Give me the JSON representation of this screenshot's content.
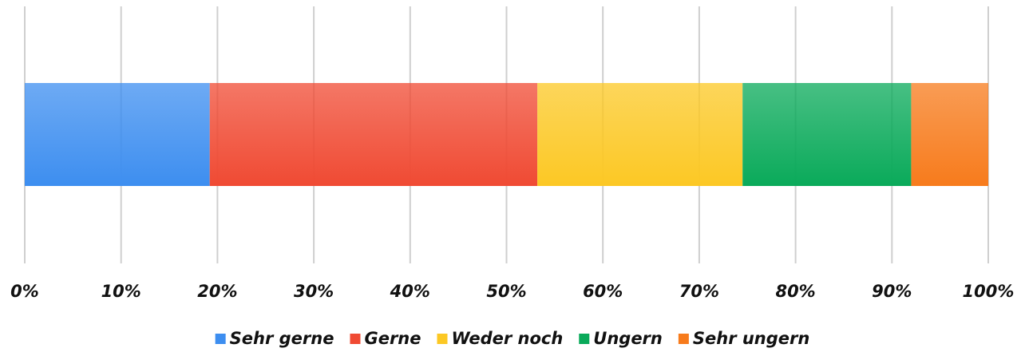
{
  "chart_data": {
    "type": "stacked_barh",
    "series": [
      {
        "name": "Sehr gerne",
        "color": "#3d8ef0",
        "values": [
          19.2
        ]
      },
      {
        "name": "Gerne",
        "color": "#f04a33",
        "values": [
          34.0
        ]
      },
      {
        "name": "Weder noch",
        "color": "#fcc824",
        "values": [
          21.3
        ]
      },
      {
        "name": "Ungern",
        "color": "#0aaa5a",
        "values": [
          17.5
        ]
      },
      {
        "name": "Sehr ungern",
        "color": "#f77b1c",
        "values": [
          8.0
        ]
      }
    ],
    "xlim": [
      0,
      100
    ],
    "xticks": [
      {
        "value": 0,
        "label": "0%"
      },
      {
        "value": 10,
        "label": "10%"
      },
      {
        "value": 20,
        "label": "20%"
      },
      {
        "value": 30,
        "label": "30%"
      },
      {
        "value": 40,
        "label": "40%"
      },
      {
        "value": 50,
        "label": "50%"
      },
      {
        "value": 60,
        "label": "60%"
      },
      {
        "value": 70,
        "label": "70%"
      },
      {
        "value": 80,
        "label": "80%"
      },
      {
        "value": 90,
        "label": "90%"
      },
      {
        "value": 100,
        "label": "100%"
      }
    ],
    "grid": true,
    "legend": "bottom"
  }
}
